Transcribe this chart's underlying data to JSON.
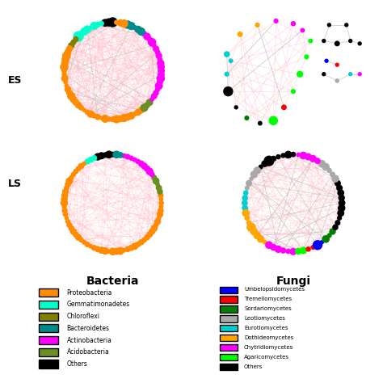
{
  "bacteria_colors": {
    "Proteobacteria": "#FF8C00",
    "Gemmatimonadetes": "#00FFCC",
    "Chloroflexi": "#808000",
    "Bacteroidetes": "#008B8B",
    "Actinobacteria": "#FF00FF",
    "Acidobacteria": "#6B8E23",
    "Others": "#000000"
  },
  "fungi_colors": {
    "Umbelopsidomycetes": "#0000FF",
    "Tremellomycetes": "#FF0000",
    "Sordariomycetes": "#008000",
    "Leotiomycetes": "#A9A9A9",
    "Eurotiomycetes": "#00CED1",
    "Dothideomycetes": "#FFA500",
    "Chytridiomycetes": "#FF00FF",
    "Agaricomycetes": "#00FF00",
    "Others": "#000000"
  },
  "bg_color": "#FFFFFF",
  "bacteria_title": "Bacteria",
  "fungi_title": "Fungi",
  "row_labels": [
    "ES",
    "LS"
  ],
  "pink_edge": "#FFB6C1",
  "gray_edge": "#C0C0C0"
}
